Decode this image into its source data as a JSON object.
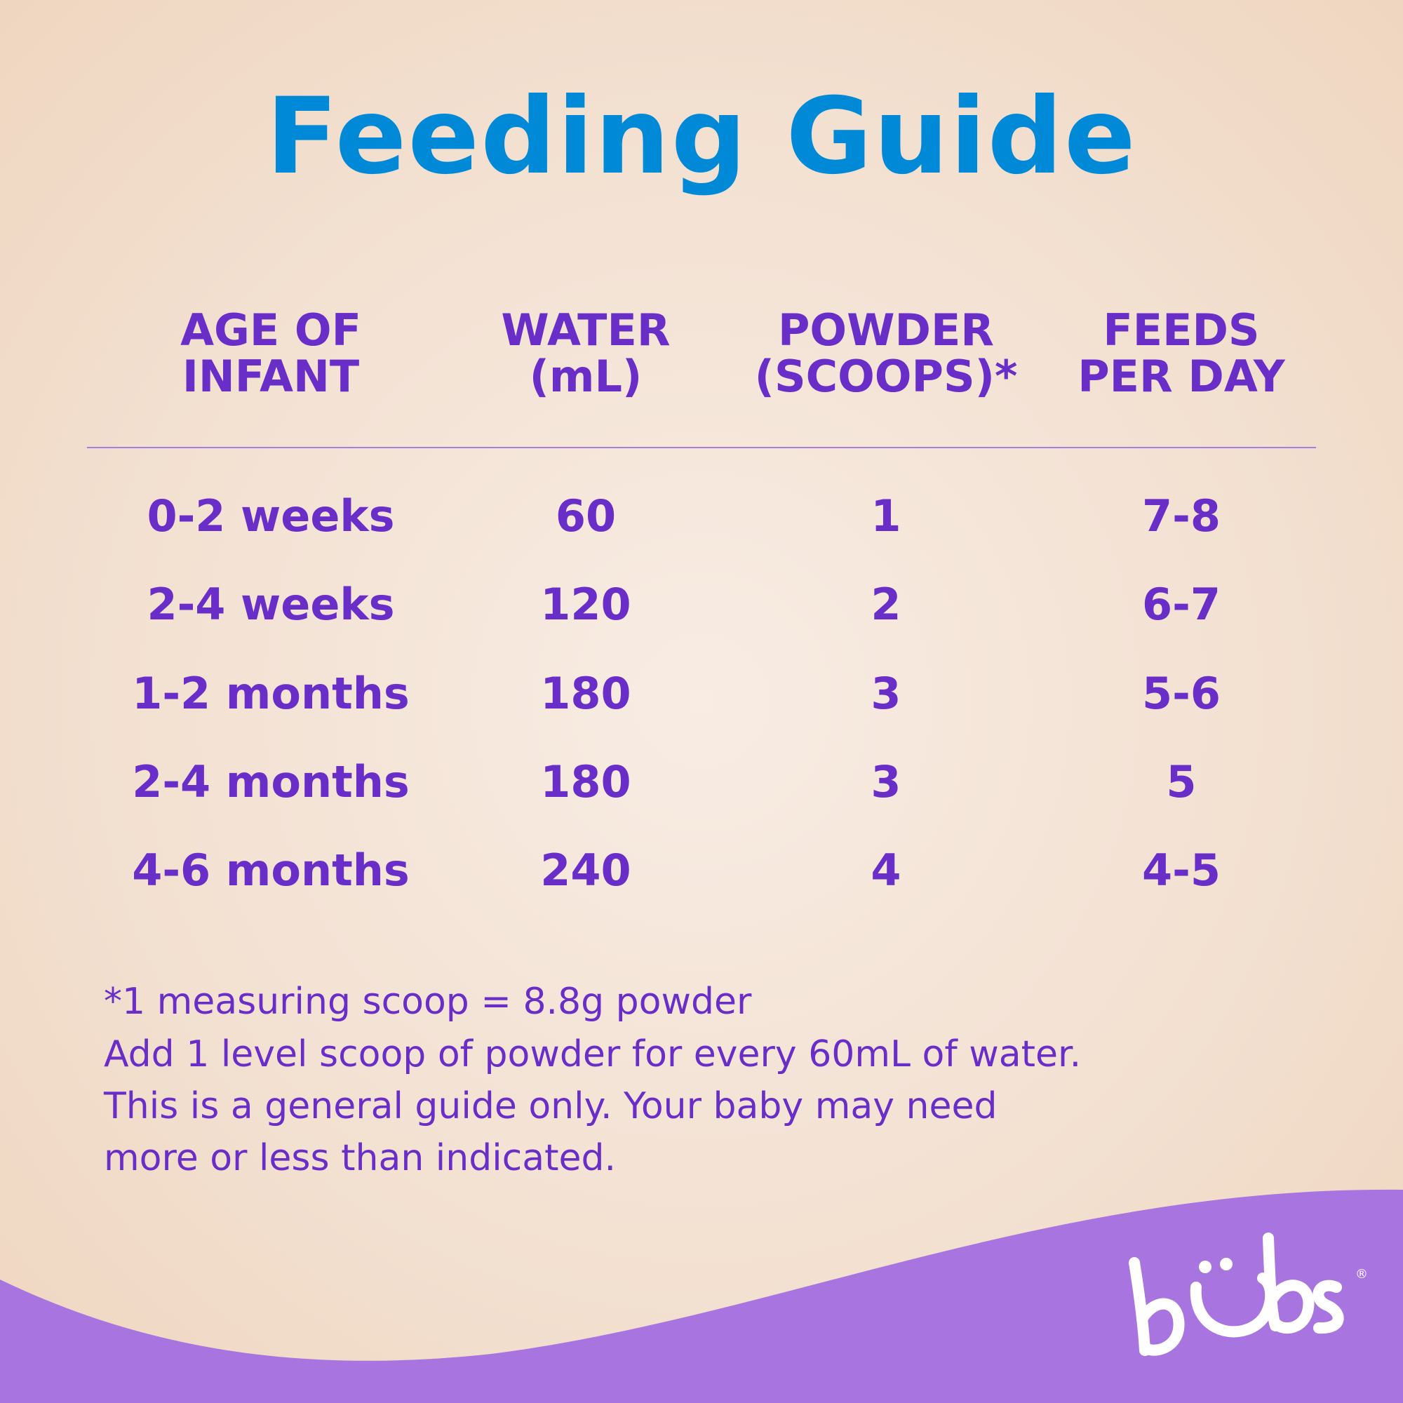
{
  "title": "Feeding Guide",
  "headers": [
    "AGE OF\nINFANT",
    "WATER\n(mL)",
    "POWDER\n(SCOOPS)*",
    "FEEDS\nPER DAY"
  ],
  "rows": [
    [
      "0-2 weeks",
      "60",
      "1",
      "7-8"
    ],
    [
      "2-4 weeks",
      "120",
      "2",
      "6-7"
    ],
    [
      "1-2 months",
      "180",
      "3",
      "5-6"
    ],
    [
      "2-4 months",
      "180",
      "3",
      "5"
    ],
    [
      "4-6 months",
      "240",
      "4",
      "4-5"
    ]
  ],
  "notes": [
    "*1 measuring scoop = 8.8g powder",
    "Add 1 level scoop of powder for every 60mL of water.",
    "This is a general guide only. Your baby may need",
    "more or less than indicated."
  ],
  "brand": {
    "logo_text": "bubs",
    "registered": "®"
  },
  "colors": {
    "title": "#0089d6",
    "text": "#6a2ec8",
    "wave": "#a874e0",
    "rule": "#a57ee0"
  }
}
